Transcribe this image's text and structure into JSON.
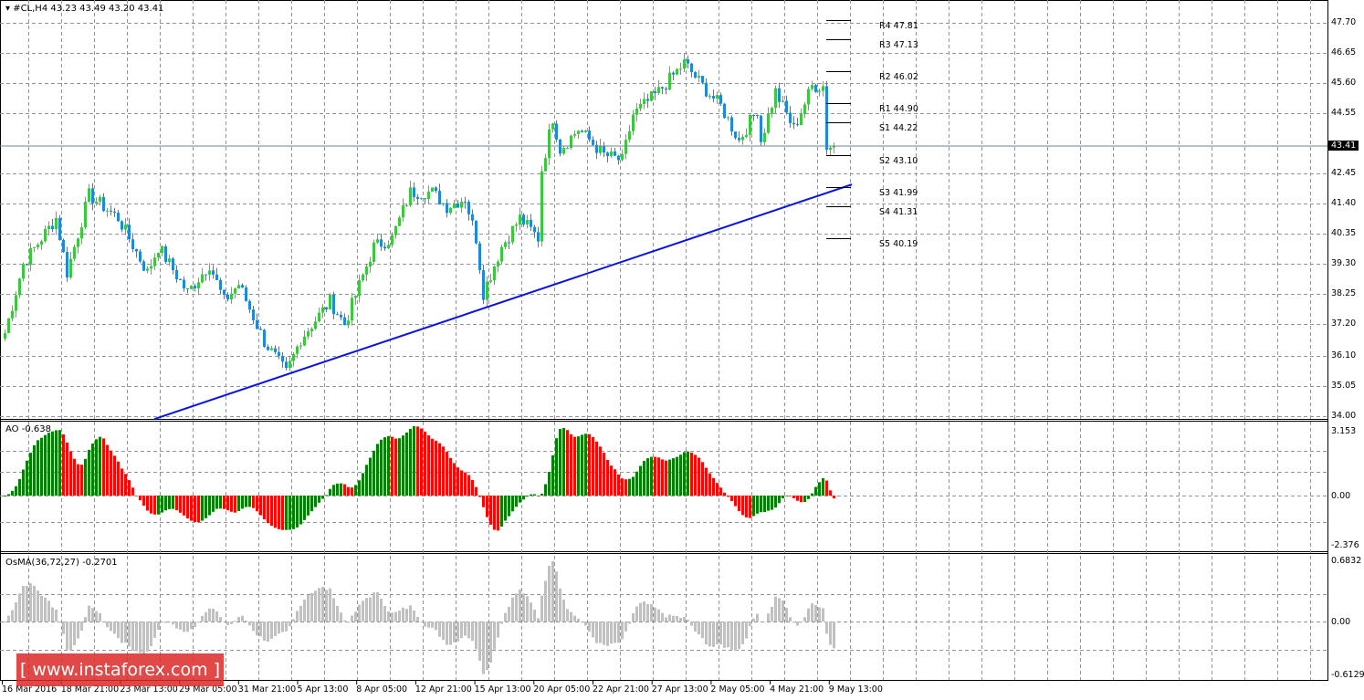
{
  "header": {
    "symbol_line": "▾ #CL,H4  43.23 43.49 43.20 43.41"
  },
  "colors": {
    "bull": "#3CC83C",
    "bear": "#1C8AD8",
    "trend": "#0A14DC",
    "ao_up": "#008000",
    "ao_down": "#FF0000",
    "osma": "#C0C0C0",
    "grid": "#8C96A0"
  },
  "price_axis": {
    "labels": [
      "47.70",
      "46.65",
      "45.60",
      "44.55",
      "42.45",
      "41.40",
      "40.35",
      "39.30",
      "38.25",
      "37.20",
      "36.10",
      "35.05",
      "34.00"
    ],
    "current": "43.41",
    "min": 34.0,
    "max": 47.7
  },
  "pivots": [
    {
      "label": "R4 47.81",
      "value": 47.81
    },
    {
      "label": "R3 47.13",
      "value": 47.13
    },
    {
      "label": "R2 46.02",
      "value": 46.02
    },
    {
      "label": "R1 44.90",
      "value": 44.9
    },
    {
      "label": "S1 44.22",
      "value": 44.22
    },
    {
      "label": "S2 43.10",
      "value": 43.1
    },
    {
      "label": "S3 41.99",
      "value": 41.99
    },
    {
      "label": "S4 41.31",
      "value": 41.31
    },
    {
      "label": "S5 40.19",
      "value": 40.19
    }
  ],
  "ao": {
    "title": "AO -0.638",
    "axis": [
      "3.153",
      "0.00",
      "-2.376"
    ],
    "max": 3.153,
    "min": -2.376
  },
  "osma": {
    "title": "OsMA(36,72,27) -0.2701",
    "axis": [
      "0.6832",
      "0.00",
      "-0.6129"
    ],
    "max": 0.6832,
    "min": -0.6129
  },
  "time_axis": [
    "16 Mar 2016",
    "18 Mar 21:00",
    "23 Mar 13:00",
    "29 Mar 05:00",
    "31 Mar 21:00",
    "5 Apr 13:00",
    "8 Apr 05:00",
    "12 Apr 21:00",
    "15 Apr 13:00",
    "20 Apr 05:00",
    "22 Apr 21:00",
    "27 Apr 13:00",
    "2 May 05:00",
    "4 May 21:00",
    "9 May 13:00"
  ],
  "watermark": "[ www.instaforex.com ]",
  "chart_data": {
    "type": "candlestick",
    "symbol": "#CL",
    "timeframe": "H4",
    "close_path": [
      [
        0,
        36.9
      ],
      [
        5,
        39.3
      ],
      [
        10,
        40.2
      ],
      [
        14,
        40.9
      ],
      [
        17,
        39.0
      ],
      [
        23,
        41.7
      ],
      [
        31,
        40.9
      ],
      [
        39,
        39.0
      ],
      [
        42,
        39.9
      ],
      [
        50,
        38.3
      ],
      [
        56,
        39.3
      ],
      [
        60,
        38.0
      ],
      [
        64,
        38.6
      ],
      [
        71,
        36.6
      ],
      [
        77,
        35.5
      ],
      [
        81,
        36.7
      ],
      [
        89,
        38.0
      ],
      [
        93,
        37.2
      ],
      [
        101,
        39.9
      ],
      [
        106,
        40.2
      ],
      [
        111,
        41.8
      ],
      [
        117,
        41.8
      ],
      [
        121,
        41.3
      ],
      [
        126,
        41.6
      ],
      [
        129,
        40.2
      ],
      [
        131,
        38.3
      ],
      [
        136,
        39.9
      ],
      [
        141,
        40.9
      ],
      [
        146,
        40.2
      ],
      [
        147,
        42.6
      ],
      [
        150,
        44.4
      ],
      [
        152,
        43.3
      ],
      [
        157,
        44.0
      ],
      [
        164,
        43.1
      ],
      [
        169,
        42.9
      ],
      [
        172,
        44.5
      ],
      [
        179,
        45.3
      ],
      [
        186,
        46.3
      ],
      [
        191,
        45.5
      ],
      [
        196,
        44.8
      ],
      [
        201,
        43.6
      ],
      [
        206,
        44.7
      ],
      [
        207,
        43.6
      ],
      [
        211,
        45.3
      ],
      [
        216,
        44.0
      ],
      [
        221,
        45.5
      ],
      [
        224,
        45.5
      ],
      [
        225,
        43.4
      ],
      [
        227,
        43.41
      ]
    ],
    "trendline": {
      "start": [
        41,
        33.9
      ],
      "end": [
        232,
        42.07
      ]
    }
  }
}
